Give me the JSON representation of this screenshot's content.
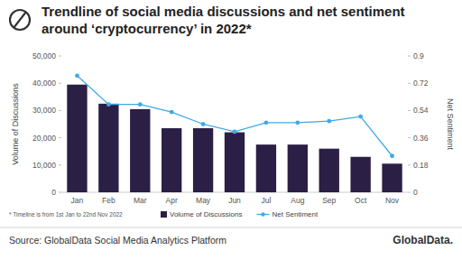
{
  "chart_data": {
    "type": "bar",
    "title": "Trendline of social media discussions and net sentiment around ‘cryptocurrency’ in 2022*",
    "categories": [
      "Jan",
      "Feb",
      "Mar",
      "Apr",
      "May",
      "Jun",
      "Jul",
      "Aug",
      "Sep",
      "Oct",
      "Nov"
    ],
    "series": [
      {
        "name": "Volume of Discussions",
        "type": "bar",
        "color": "#2b1f45",
        "values": [
          39500,
          32500,
          30500,
          23500,
          23500,
          22000,
          17500,
          17500,
          16000,
          13000,
          10500
        ]
      },
      {
        "name": "Net Sentiment",
        "type": "line",
        "axis": "y2",
        "color": "#3fa9e6",
        "marker": "circle",
        "line_style": "solid",
        "values": [
          0.77,
          0.58,
          0.58,
          0.53,
          0.45,
          0.4,
          0.46,
          0.46,
          0.47,
          0.5,
          0.24
        ]
      }
    ],
    "y_label": "Volume of Discussions",
    "y2_label": "Net Sentiment",
    "ylim": [
      0,
      50000
    ],
    "yticks": [
      0,
      {
        "value": 10000,
        "label": "10,000"
      },
      {
        "value": 20000,
        "label": "20,000"
      },
      {
        "value": 30000,
        "label": "30,000"
      },
      {
        "value": 40000,
        "label": "40,000"
      },
      {
        "value": 50000,
        "label": "50,000"
      }
    ],
    "y2lim": [
      0,
      0.9
    ],
    "y2ticks": [
      0,
      0.18,
      0.36,
      0.54,
      0.72,
      0.9
    ],
    "grid": false,
    "legend": "bottom",
    "note": "* Timeline is from 1st Jan to 22nd Nov 2022",
    "source": "Source: GlobalData Social Media Analytics Platform",
    "logo": "GlobalData."
  }
}
